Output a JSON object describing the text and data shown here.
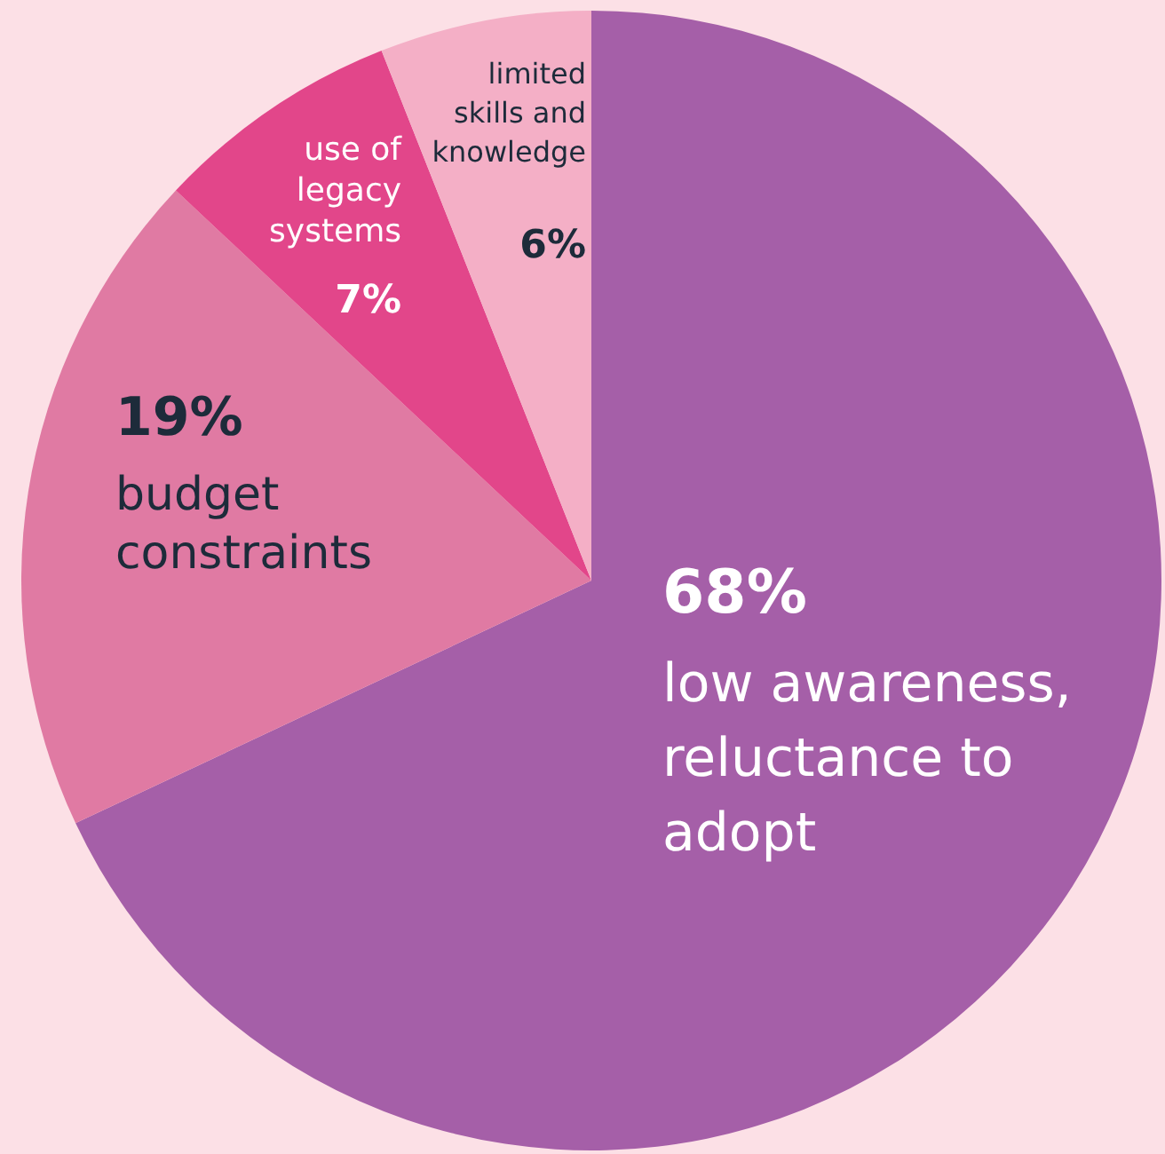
{
  "chart_data": {
    "type": "pie",
    "categories": [
      "low awareness, reluctance to adopt",
      "budget constraints",
      "use of legacy systems",
      "limited skills and knowledge"
    ],
    "values": [
      68,
      19,
      7,
      6
    ],
    "colors": [
      "#a55fa8",
      "#e07aa3",
      "#e2468a",
      "#f4afc6"
    ],
    "value_labels": [
      "68%",
      "19%",
      "7%",
      "6%"
    ]
  }
}
